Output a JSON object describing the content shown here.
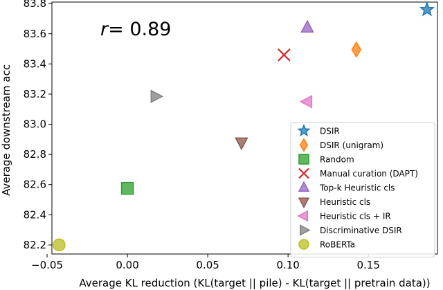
{
  "chart_data": {
    "type": "scatter",
    "xlabel": "Average KL reduction (KL(target || pile) - KL(target || pretrain data))",
    "ylabel": "Average downstream acc",
    "annotation": {
      "prefix": "r",
      "value": "= 0.89"
    },
    "xlim": [
      -0.047,
      0.193
    ],
    "ylim": [
      82.14,
      83.81
    ],
    "x_ticks": [
      {
        "value": -0.05,
        "label": "−0.05"
      },
      {
        "value": 0.0,
        "label": "0.00"
      },
      {
        "value": 0.05,
        "label": "0.05"
      },
      {
        "value": 0.1,
        "label": "0.10"
      },
      {
        "value": 0.15,
        "label": "0.15"
      }
    ],
    "y_ticks": [
      {
        "value": 82.2,
        "label": "82.2"
      },
      {
        "value": 82.4,
        "label": "82.4"
      },
      {
        "value": 82.6,
        "label": "82.6"
      },
      {
        "value": 82.8,
        "label": "82.8"
      },
      {
        "value": 83.0,
        "label": "83.0"
      },
      {
        "value": 83.2,
        "label": "83.2"
      },
      {
        "value": 83.4,
        "label": "83.4"
      },
      {
        "value": 83.6,
        "label": "83.6"
      },
      {
        "value": 83.8,
        "label": "83.8"
      }
    ],
    "grid": false,
    "legend": {
      "position": "lower-right"
    },
    "series": [
      {
        "name": "DSIR",
        "marker": "star",
        "color": "#1f77b4",
        "x": 0.1865,
        "y": 83.76
      },
      {
        "name": "DSIR (unigram)",
        "marker": "diamond",
        "color": "#ff7f0e",
        "x": 0.1425,
        "y": 83.495
      },
      {
        "name": "Random",
        "marker": "square",
        "color": "#2ca02c",
        "x": 0.0,
        "y": 82.575
      },
      {
        "name": "Manual curation (DAPT)",
        "marker": "x",
        "color": "#d62728",
        "x": 0.0975,
        "y": 83.46
      },
      {
        "name": "Top-k Heuristic cls",
        "marker": "triangle-up",
        "color": "#9467bd",
        "x": 0.112,
        "y": 83.64
      },
      {
        "name": "Heuristic cls",
        "marker": "triangle-down",
        "color": "#8c564b",
        "x": 0.071,
        "y": 82.88
      },
      {
        "name": "Heuristic cls + IR",
        "marker": "triangle-left",
        "color": "#e377c2",
        "x": 0.112,
        "y": 83.15
      },
      {
        "name": "Discriminative DSIR",
        "marker": "triangle-right",
        "color": "#7f7f7f",
        "x": 0.0175,
        "y": 83.185
      },
      {
        "name": "RoBERTa",
        "marker": "circle",
        "color": "#bcbd22",
        "x": -0.0425,
        "y": 82.2
      }
    ]
  }
}
